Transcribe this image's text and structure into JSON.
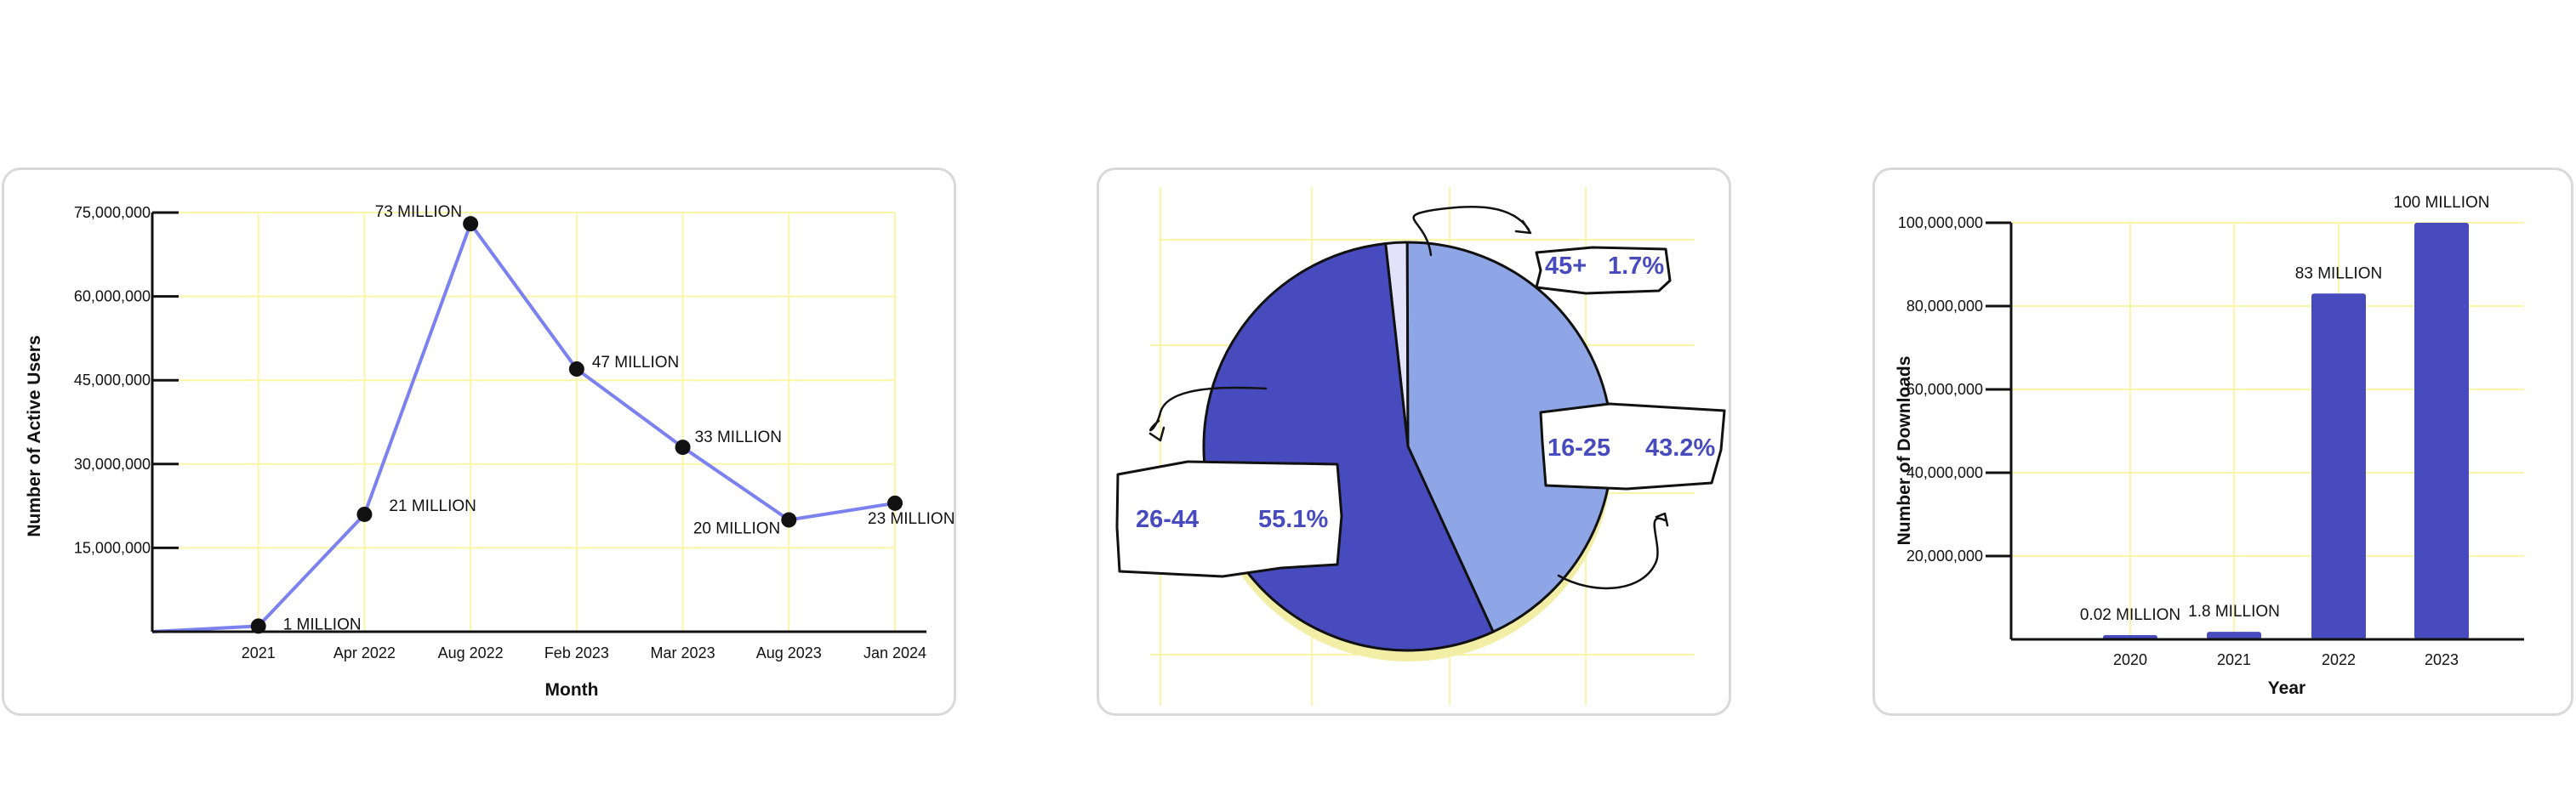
{
  "chart_data": [
    {
      "type": "line",
      "xlabel": "Month",
      "ylabel": "Number of Active Users",
      "categories": [
        "",
        "2021",
        "Apr 2022",
        "Aug 2022",
        "Feb 2023",
        "Mar 2023",
        "Aug 2023",
        "Jan 2024"
      ],
      "values": [
        0,
        1000000,
        21000000,
        73000000,
        47000000,
        33000000,
        20000000,
        23000000
      ],
      "point_labels": [
        null,
        "1 MILLION",
        "21 MILLION",
        "73 MILLION",
        "47 MILLION",
        "33 MILLION",
        "20 MILLION",
        "23 MILLION"
      ],
      "y_ticks": [
        "15,000,000",
        "30,000,000",
        "45,000,000",
        "60,000,000",
        "75,000,000"
      ],
      "y_tick_values": [
        15000000,
        30000000,
        45000000,
        60000000,
        75000000
      ],
      "ylim": [
        0,
        75000000
      ],
      "grid": true,
      "line_color": "#7b82f0"
    },
    {
      "type": "pie",
      "slices": [
        {
          "label": "45+",
          "percent_text": "1.7%",
          "value": 1.7,
          "color": "#e2e3fb"
        },
        {
          "label": "16-25",
          "percent_text": "43.2%",
          "value": 43.2,
          "color": "#8fa6e6"
        },
        {
          "label": "26-44",
          "percent_text": "55.1%",
          "value": 55.1,
          "color": "#474bbd"
        }
      ],
      "shadow_color": "#f2eea6",
      "grid": true
    },
    {
      "type": "bar",
      "xlabel": "Year",
      "ylabel": "Number of Downloads",
      "categories": [
        "2020",
        "2021",
        "2022",
        "2023"
      ],
      "values": [
        20000,
        1800000,
        83000000,
        100000000
      ],
      "value_labels": [
        "0.02 MILLION",
        "1.8 MILLION",
        "83 MILLION",
        "100 MILLION"
      ],
      "y_ticks": [
        "20,000,000",
        "40,000,000",
        "60,000,000",
        "80,000,000",
        "100,000,000"
      ],
      "y_tick_values": [
        20000000,
        40000000,
        60000000,
        80000000,
        100000000
      ],
      "ylim": [
        0,
        100000000
      ],
      "grid": true,
      "bar_color": "#474bbd"
    }
  ]
}
